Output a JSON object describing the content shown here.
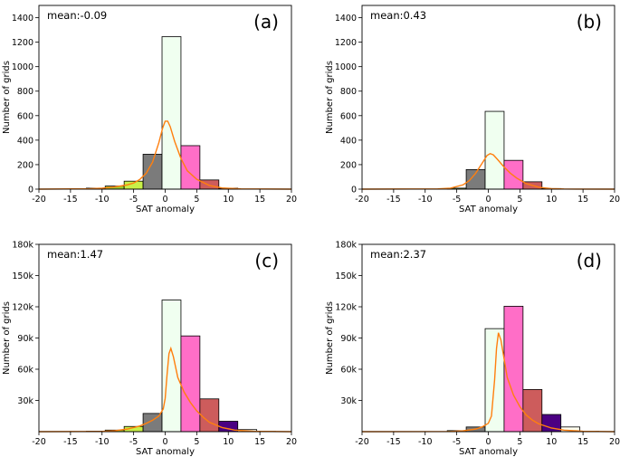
{
  "colors": {
    "bin_m11": "#8b0000",
    "bin_m8": "#9acd32",
    "bin_m5": "#c8f048",
    "bin_m2": "#7b7b7b",
    "bin_1": "#f0fff0",
    "bin_4": "#ff6ec7",
    "bin_7": "#cd5c5c",
    "bin_10": "#4b0082",
    "bin_13": "#fffff0",
    "bin_16": "#ffffff",
    "kde": "#ff7f0e"
  },
  "chart_data": [
    {
      "type": "bar",
      "panel": "(a)",
      "annotation": "mean:-0.09",
      "xlabel": "SAT anomaly",
      "ylabel": "Number of grids",
      "xlim": [
        -20,
        20
      ],
      "ylim": [
        0,
        1500
      ],
      "xticks": [
        "-20",
        "-15",
        "-10",
        "-5",
        "0",
        "5",
        "10",
        "15",
        "20"
      ],
      "yticks": [
        {
          "v": 0,
          "label": "0"
        },
        {
          "v": 200,
          "label": "200"
        },
        {
          "v": 400,
          "label": "400"
        },
        {
          "v": 600,
          "label": "600"
        },
        {
          "v": 800,
          "label": "800"
        },
        {
          "v": 1000,
          "label": "1000"
        },
        {
          "v": 1200,
          "label": "1200"
        },
        {
          "v": 1400,
          "label": "1400"
        }
      ],
      "bins": [
        {
          "x0": -12.5,
          "x1": -9.5,
          "value": 8,
          "color": "bin_m11"
        },
        {
          "x0": -9.5,
          "x1": -6.5,
          "value": 25,
          "color": "bin_m8"
        },
        {
          "x0": -6.5,
          "x1": -3.5,
          "value": 65,
          "color": "bin_m5"
        },
        {
          "x0": -3.5,
          "x1": -0.5,
          "value": 285,
          "color": "bin_m2"
        },
        {
          "x0": -0.5,
          "x1": 2.5,
          "value": 1245,
          "color": "bin_1"
        },
        {
          "x0": 2.5,
          "x1": 5.5,
          "value": 355,
          "color": "bin_4"
        },
        {
          "x0": 5.5,
          "x1": 8.5,
          "value": 75,
          "color": "bin_7"
        },
        {
          "x0": 8.5,
          "x1": 11.5,
          "value": 8,
          "color": "bin_10"
        }
      ],
      "kde": [
        [
          -20,
          0
        ],
        [
          -12,
          3
        ],
        [
          -10,
          8
        ],
        [
          -8,
          18
        ],
        [
          -6,
          35
        ],
        [
          -5,
          50
        ],
        [
          -4,
          80
        ],
        [
          -3,
          130
        ],
        [
          -2,
          220
        ],
        [
          -1,
          380
        ],
        [
          -0.4,
          500
        ],
        [
          0,
          555
        ],
        [
          0.4,
          555
        ],
        [
          0.8,
          510
        ],
        [
          1.5,
          390
        ],
        [
          2.5,
          250
        ],
        [
          3.5,
          150
        ],
        [
          5,
          80
        ],
        [
          7,
          30
        ],
        [
          9,
          10
        ],
        [
          12,
          2
        ],
        [
          20,
          0
        ]
      ]
    },
    {
      "type": "bar",
      "panel": "(b)",
      "annotation": "mean:0.43",
      "xlabel": "SAT anomaly",
      "ylabel": "Number of grids",
      "xlim": [
        -20,
        20
      ],
      "ylim": [
        0,
        1500
      ],
      "xticks": [
        "-20",
        "-15",
        "-10",
        "-5",
        "0",
        "5",
        "10",
        "15",
        "20"
      ],
      "yticks": [
        {
          "v": 0,
          "label": "0"
        },
        {
          "v": 200,
          "label": "200"
        },
        {
          "v": 400,
          "label": "400"
        },
        {
          "v": 600,
          "label": "600"
        },
        {
          "v": 800,
          "label": "800"
        },
        {
          "v": 1000,
          "label": "1000"
        },
        {
          "v": 1200,
          "label": "1200"
        },
        {
          "v": 1400,
          "label": "1400"
        }
      ],
      "bins": [
        {
          "x0": -6.5,
          "x1": -3.5,
          "value": 8,
          "color": "bin_m5"
        },
        {
          "x0": -3.5,
          "x1": -0.5,
          "value": 160,
          "color": "bin_m2"
        },
        {
          "x0": -0.5,
          "x1": 2.5,
          "value": 635,
          "color": "bin_1"
        },
        {
          "x0": 2.5,
          "x1": 5.5,
          "value": 235,
          "color": "bin_4"
        },
        {
          "x0": 5.5,
          "x1": 8.5,
          "value": 60,
          "color": "bin_7"
        },
        {
          "x0": 8.5,
          "x1": 11.5,
          "value": 5,
          "color": "bin_10"
        }
      ],
      "kde": [
        [
          -20,
          0
        ],
        [
          -8,
          2
        ],
        [
          -6,
          8
        ],
        [
          -4,
          35
        ],
        [
          -3,
          70
        ],
        [
          -2,
          130
        ],
        [
          -1,
          210
        ],
        [
          -0.2,
          275
        ],
        [
          0.3,
          290
        ],
        [
          0.8,
          280
        ],
        [
          1.5,
          240
        ],
        [
          2.5,
          180
        ],
        [
          3.5,
          130
        ],
        [
          4.5,
          90
        ],
        [
          6,
          45
        ],
        [
          8,
          15
        ],
        [
          10,
          4
        ],
        [
          12,
          1
        ],
        [
          20,
          0
        ]
      ]
    },
    {
      "type": "bar",
      "panel": "(c)",
      "annotation": "mean:1.47",
      "xlabel": "SAT anomaly",
      "ylabel": "Number of grids",
      "xlim": [
        -20,
        20
      ],
      "ylim": [
        0,
        180000
      ],
      "xticks": [
        "-20",
        "-15",
        "-10",
        "-5",
        "0",
        "5",
        "10",
        "15",
        "20"
      ],
      "yticks": [
        {
          "v": 30000,
          "label": "30k"
        },
        {
          "v": 60000,
          "label": "60k"
        },
        {
          "v": 90000,
          "label": "90k"
        },
        {
          "v": 120000,
          "label": "120k"
        },
        {
          "v": 150000,
          "label": "150k"
        },
        {
          "v": 180000,
          "label": "180k"
        }
      ],
      "bins": [
        {
          "x0": -12.5,
          "x1": -9.5,
          "value": 500,
          "color": "bin_m11"
        },
        {
          "x0": -9.5,
          "x1": -6.5,
          "value": 1500,
          "color": "bin_m8"
        },
        {
          "x0": -6.5,
          "x1": -3.5,
          "value": 5000,
          "color": "bin_m5"
        },
        {
          "x0": -3.5,
          "x1": -0.5,
          "value": 17500,
          "color": "bin_m2"
        },
        {
          "x0": -0.5,
          "x1": 2.5,
          "value": 126500,
          "color": "bin_1"
        },
        {
          "x0": 2.5,
          "x1": 5.5,
          "value": 92000,
          "color": "bin_4"
        },
        {
          "x0": 5.5,
          "x1": 8.5,
          "value": 31500,
          "color": "bin_7"
        },
        {
          "x0": 8.5,
          "x1": 11.5,
          "value": 10000,
          "color": "bin_10"
        },
        {
          "x0": 11.5,
          "x1": 14.5,
          "value": 2000,
          "color": "bin_13"
        },
        {
          "x0": 14.5,
          "x1": 17.5,
          "value": 300,
          "color": "bin_16"
        }
      ],
      "kde": [
        [
          -20,
          0
        ],
        [
          -10,
          300
        ],
        [
          -8,
          900
        ],
        [
          -6,
          2500
        ],
        [
          -4,
          5500
        ],
        [
          -3,
          8000
        ],
        [
          -2,
          11000
        ],
        [
          -1,
          15000
        ],
        [
          -0.3,
          22000
        ],
        [
          0,
          32000
        ],
        [
          0.3,
          55000
        ],
        [
          0.6,
          75000
        ],
        [
          0.9,
          80000
        ],
        [
          1.3,
          72000
        ],
        [
          2,
          52000
        ],
        [
          3,
          38000
        ],
        [
          4,
          28000
        ],
        [
          5,
          20000
        ],
        [
          6,
          14000
        ],
        [
          7,
          9000
        ],
        [
          9,
          4000
        ],
        [
          11,
          1500
        ],
        [
          14,
          400
        ],
        [
          20,
          0
        ]
      ]
    },
    {
      "type": "bar",
      "panel": "(d)",
      "annotation": "mean:2.37",
      "xlabel": "SAT anomaly",
      "ylabel": "Number of grids",
      "xlim": [
        -20,
        20
      ],
      "ylim": [
        0,
        180000
      ],
      "xticks": [
        "-20",
        "-15",
        "-10",
        "-5",
        "0",
        "5",
        "10",
        "15",
        "20"
      ],
      "yticks": [
        {
          "v": 30000,
          "label": "30k"
        },
        {
          "v": 60000,
          "label": "60k"
        },
        {
          "v": 90000,
          "label": "90k"
        },
        {
          "v": 120000,
          "label": "120k"
        },
        {
          "v": 150000,
          "label": "150k"
        },
        {
          "v": 180000,
          "label": "180k"
        }
      ],
      "bins": [
        {
          "x0": -6.5,
          "x1": -3.5,
          "value": 1000,
          "color": "bin_m5"
        },
        {
          "x0": -3.5,
          "x1": -0.5,
          "value": 4500,
          "color": "bin_m2"
        },
        {
          "x0": -0.5,
          "x1": 2.5,
          "value": 99000,
          "color": "bin_1"
        },
        {
          "x0": 2.5,
          "x1": 5.5,
          "value": 120500,
          "color": "bin_4"
        },
        {
          "x0": 5.5,
          "x1": 8.5,
          "value": 40500,
          "color": "bin_7"
        },
        {
          "x0": 8.5,
          "x1": 11.5,
          "value": 16500,
          "color": "bin_10"
        },
        {
          "x0": 11.5,
          "x1": 14.5,
          "value": 4500,
          "color": "bin_13"
        },
        {
          "x0": 14.5,
          "x1": 17.5,
          "value": 500,
          "color": "bin_16"
        }
      ],
      "kde": [
        [
          -20,
          0
        ],
        [
          -6,
          200
        ],
        [
          -4,
          800
        ],
        [
          -2,
          2500
        ],
        [
          -1,
          4500
        ],
        [
          0,
          8000
        ],
        [
          0.5,
          15000
        ],
        [
          1,
          50000
        ],
        [
          1.3,
          80000
        ],
        [
          1.6,
          95000
        ],
        [
          2,
          88000
        ],
        [
          2.5,
          70000
        ],
        [
          3,
          52000
        ],
        [
          4,
          35000
        ],
        [
          5,
          24000
        ],
        [
          6,
          16000
        ],
        [
          7,
          11000
        ],
        [
          8,
          7500
        ],
        [
          10,
          3500
        ],
        [
          12,
          1500
        ],
        [
          15,
          400
        ],
        [
          20,
          0
        ]
      ]
    }
  ]
}
